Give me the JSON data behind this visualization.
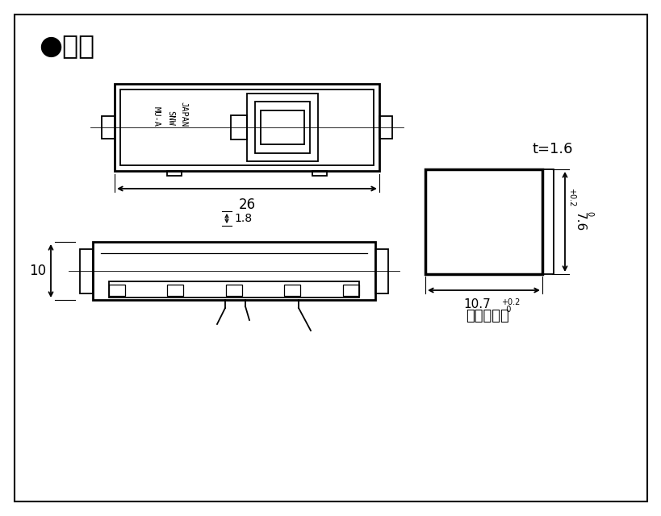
{
  "bg_color": "#ffffff",
  "line_color": "#000000",
  "title_text": "●寸法",
  "title_fontsize": 24,
  "dim_fontsize": 11,
  "annotation_text": "取付穴寸法",
  "t_text": "t=1.6",
  "label_mu": "MU-A",
  "label_snw": "SNW",
  "label_japan": "JAPAN"
}
